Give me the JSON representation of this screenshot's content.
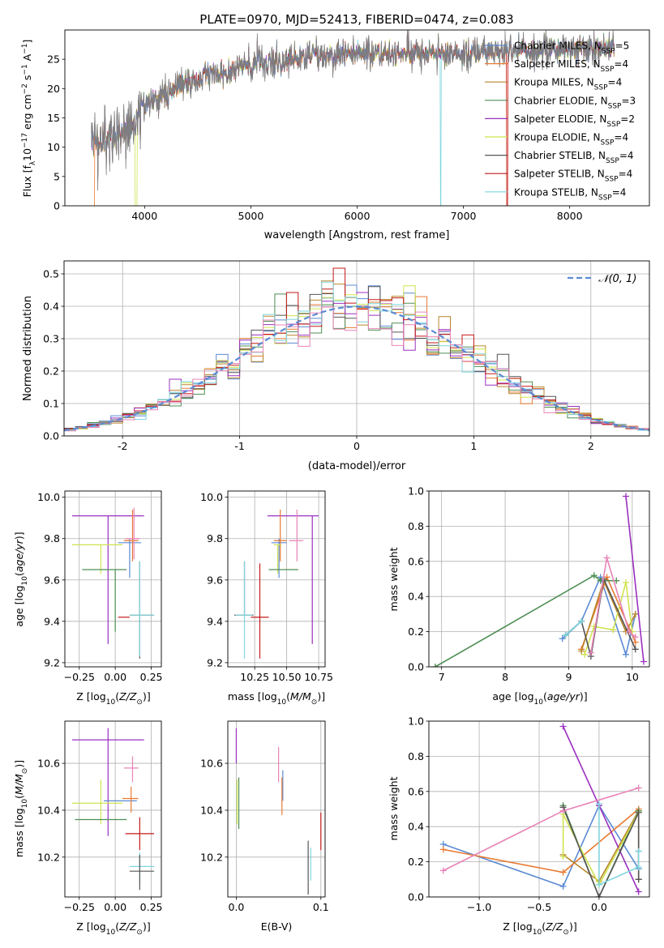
{
  "figure_title": "PLATE=0970, MJD=52413, FIBERID=0474, z=0.083",
  "colors": {
    "Chabrier MILES": "#5b8bd4",
    "Salpeter MILES": "#e87a32",
    "Kroupa MILES": "#b8862b",
    "Chabrier ELODIE": "#4f8f55",
    "Salpeter ELODIE": "#9b30c0",
    "Kroupa ELODIE": "#d0e34f",
    "Chabrier STELIB": "#555555",
    "Salpeter STELIB": "#c41a1a",
    "Kroupa STELIB": "#7fd6dd",
    "extra_pink": "#e884b8"
  },
  "chart_data": [
    {
      "id": "spectrum",
      "type": "line",
      "title": "",
      "xlabel": "wavelength [Angstrom, rest frame]",
      "ylabel": "Flux [f_λ10^{-17} erg cm^{-2} s^{-1} A^{-1}]",
      "xlim": [
        3250,
        8750
      ],
      "ylim": [
        0,
        30
      ],
      "xticks": [
        4000,
        5000,
        6000,
        7000,
        8000
      ],
      "yticks": [
        0,
        5,
        10,
        15,
        20,
        25
      ],
      "grid": false,
      "legend_position": "right",
      "legend": [
        {
          "name": "Chabrier MILES",
          "nssp": 5
        },
        {
          "name": "Salpeter MILES",
          "nssp": 4
        },
        {
          "name": "Kroupa MILES",
          "nssp": 4
        },
        {
          "name": "Chabrier ELODIE",
          "nssp": 3
        },
        {
          "name": "Salpeter ELODIE",
          "nssp": 2
        },
        {
          "name": "Kroupa ELODIE",
          "nssp": 4
        },
        {
          "name": "Chabrier STELIB",
          "nssp": 4
        },
        {
          "name": "Salpeter STELIB",
          "nssp": 4
        },
        {
          "name": "Kroupa STELIB",
          "nssp": 4
        }
      ],
      "continuum": [
        [
          3500,
          10
        ],
        [
          3700,
          12
        ],
        [
          3900,
          14
        ],
        [
          4000,
          17
        ],
        [
          4300,
          20
        ],
        [
          4600,
          22.5
        ],
        [
          5000,
          24
        ],
        [
          5500,
          25.5
        ],
        [
          6000,
          26
        ],
        [
          6500,
          26
        ],
        [
          7000,
          26
        ],
        [
          7500,
          26.5
        ],
        [
          8000,
          26.5
        ],
        [
          8400,
          27
        ]
      ]
    },
    {
      "id": "residuals",
      "type": "line",
      "title": "",
      "xlabel": "(data-model)/error",
      "ylabel": "Normed distribution",
      "xlim": [
        -2.5,
        2.5
      ],
      "ylim": [
        0,
        0.54
      ],
      "xticks": [
        -2,
        -1,
        0,
        1,
        2
      ],
      "yticks": [
        0.0,
        0.1,
        0.2,
        0.3,
        0.4,
        0.5
      ],
      "grid": true,
      "legend_position": "top-right",
      "legend": [
        {
          "name": "𝒩(0, 1)"
        }
      ],
      "bins_lower": -2.5,
      "bin_width": 0.1,
      "n_bins": 50
    },
    {
      "id": "age_vs_Z",
      "type": "scatter",
      "xlabel": "Z [log10(Z/Z⊙)]",
      "ylabel": "age  [log10(age/yr)]",
      "xlim": [
        -0.35,
        0.32
      ],
      "ylim": [
        9.18,
        10.03
      ],
      "xticks": [
        -0.25,
        0.0,
        0.25
      ],
      "xticklabels": [
        "−0.25",
        "0.00",
        "0.25"
      ],
      "yticks": [
        9.2,
        9.4,
        9.6,
        9.8,
        10.0
      ],
      "grid": true,
      "points": [
        {
          "name": "Salpeter ELODIE",
          "x": -0.05,
          "xerr": [
            0.25,
            0.25
          ],
          "y": 9.91,
          "yerr": [
            0.62,
            0.0
          ]
        },
        {
          "name": "Chabrier MILES",
          "x": 0.1,
          "xerr": [
            0.08,
            0.08
          ],
          "y": 9.78,
          "yerr": [
            0.17,
            0.02
          ]
        },
        {
          "name": "Salpeter MILES",
          "x": 0.12,
          "xerr": [
            0.06,
            0.04
          ],
          "y": 9.79,
          "yerr": [
            0.1,
            0.15
          ]
        },
        {
          "name": "extra_pink",
          "x": 0.13,
          "xerr": [
            0.06,
            0.04
          ],
          "y": 9.8,
          "yerr": [
            0.1,
            0.15
          ]
        },
        {
          "name": "Kroupa ELODIE",
          "x": -0.1,
          "xerr": [
            0.2,
            0.15
          ],
          "y": 9.77,
          "yerr": [
            0.14,
            0.0
          ]
        },
        {
          "name": "Chabrier ELODIE",
          "x": 0.0,
          "xerr": [
            0.23,
            0.08
          ],
          "y": 9.65,
          "yerr": [
            0.3,
            0.0
          ]
        },
        {
          "name": "Salpeter STELIB",
          "x": 0.1,
          "xerr": [
            0.08,
            0.0
          ],
          "y": 9.42,
          "yerr": [
            0.0,
            0.0
          ]
        },
        {
          "name": "Chabrier STELIB",
          "x": 0.17,
          "xerr": [
            0.07,
            0.1
          ],
          "y": 9.43,
          "yerr": [
            0.21,
            0.26
          ]
        },
        {
          "name": "Kroupa STELIB",
          "x": 0.17,
          "xerr": [
            0.07,
            0.1
          ],
          "y": 9.43,
          "yerr": [
            0.2,
            0.26
          ]
        }
      ]
    },
    {
      "id": "age_vs_mass",
      "type": "scatter",
      "xlabel": "mass [log10(M/M⊙)]",
      "ylabel": "",
      "xlim": [
        10.04,
        10.8
      ],
      "ylim": [
        9.18,
        10.03
      ],
      "xticks": [
        10.25,
        10.5,
        10.75
      ],
      "xticklabels": [
        "10.25",
        "10.50",
        "10.75"
      ],
      "yticks": [
        9.2,
        9.4,
        9.6,
        9.8,
        10.0
      ],
      "grid": true,
      "points": [
        {
          "name": "Salpeter ELODIE",
          "x": 10.7,
          "xerr": [
            0.35,
            0.05
          ],
          "y": 9.91,
          "yerr": [
            0.62,
            0.0
          ]
        },
        {
          "name": "Chabrier MILES",
          "x": 10.44,
          "xerr": [
            0.06,
            0.06
          ],
          "y": 9.78,
          "yerr": [
            0.17,
            0.02
          ]
        },
        {
          "name": "Salpeter MILES",
          "x": 10.45,
          "xerr": [
            0.05,
            0.05
          ],
          "y": 9.79,
          "yerr": [
            0.1,
            0.15
          ]
        },
        {
          "name": "extra_pink",
          "x": 10.58,
          "xerr": [
            0.06,
            0.05
          ],
          "y": 9.79,
          "yerr": [
            0.1,
            0.15
          ]
        },
        {
          "name": "Kroupa ELODIE",
          "x": 10.43,
          "xerr": [
            0.03,
            0.03
          ],
          "y": 9.77,
          "yerr": [
            0.14,
            0.0
          ]
        },
        {
          "name": "Chabrier ELODIE",
          "x": 10.5,
          "xerr": [
            0.14,
            0.09
          ],
          "y": 9.65,
          "yerr": [
            0.0,
            0.0
          ]
        },
        {
          "name": "Salpeter STELIB",
          "x": 10.29,
          "xerr": [
            0.07,
            0.07
          ],
          "y": 9.42,
          "yerr": [
            0.2,
            0.26
          ]
        },
        {
          "name": "Chabrier STELIB",
          "x": 10.17,
          "xerr": [
            0.08,
            0.07
          ],
          "y": 9.43,
          "yerr": [
            0.0,
            0.26
          ]
        },
        {
          "name": "Kroupa STELIB",
          "x": 10.17,
          "xerr": [
            0.07,
            0.06
          ],
          "y": 9.43,
          "yerr": [
            0.21,
            0.26
          ]
        }
      ]
    },
    {
      "id": "massweight_vs_age",
      "type": "line",
      "xlabel": "age  [log10(age/yr)]",
      "ylabel": "mass weight",
      "xlim": [
        6.8,
        10.27
      ],
      "ylim": [
        0,
        1.0
      ],
      "xticks": [
        7,
        8,
        9,
        10
      ],
      "yticks": [
        0.0,
        0.2,
        0.4,
        0.6,
        0.8,
        1.0
      ],
      "grid": true,
      "series": [
        {
          "name": "Chabrier MILES",
          "x": [
            8.9,
            9.2,
            9.5,
            9.9,
            10.05
          ],
          "y": [
            0.16,
            0.26,
            0.51,
            0.07,
            0.3
          ]
        },
        {
          "name": "Salpeter MILES",
          "x": [
            9.2,
            9.6,
            10.05
          ],
          "y": [
            0.1,
            0.51,
            0.14
          ]
        },
        {
          "name": "Kroupa MILES",
          "x": [
            9.2,
            9.55,
            9.9,
            10.05
          ],
          "y": [
            0.09,
            0.49,
            0.2,
            0.3
          ]
        },
        {
          "name": "Chabrier ELODIE",
          "x": [
            6.9,
            9.4,
            9.5,
            9.75
          ],
          "y": [
            0.0,
            0.52,
            0.49,
            0.49
          ]
        },
        {
          "name": "Salpeter ELODIE",
          "x": [
            9.9,
            10.18
          ],
          "y": [
            0.97,
            0.03
          ]
        },
        {
          "name": "Kroupa ELODIE",
          "x": [
            9.25,
            9.4,
            9.7,
            9.9,
            10.0
          ],
          "y": [
            0.07,
            0.23,
            0.21,
            0.48,
            0.2
          ]
        },
        {
          "name": "Chabrier STELIB",
          "x": [
            8.95,
            9.2,
            9.35,
            9.55,
            10.05
          ],
          "y": [
            0.18,
            0.26,
            0.06,
            0.5,
            0.1
          ]
        },
        {
          "name": "Kroupa STELIB",
          "x": [
            8.95,
            9.2
          ],
          "y": [
            0.18,
            0.26
          ]
        },
        {
          "name": "extra_pink",
          "x": [
            9.35,
            9.6,
            9.95,
            10.05
          ],
          "y": [
            0.08,
            0.62,
            0.2,
            0.17
          ]
        }
      ]
    },
    {
      "id": "mass_vs_Z",
      "type": "scatter",
      "xlabel": "Z [log10(Z/Z⊙)]",
      "ylabel": "mass [log10(M/M⊙)]",
      "xlim": [
        -0.35,
        0.32
      ],
      "ylim": [
        10.03,
        10.78
      ],
      "xticks": [
        -0.25,
        0.0,
        0.25
      ],
      "xticklabels": [
        "−0.25",
        "0.00",
        "0.25"
      ],
      "yticks": [
        10.2,
        10.4,
        10.6
      ],
      "grid": true,
      "points": [
        {
          "name": "Salpeter ELODIE",
          "x": -0.05,
          "xerr": [
            0.25,
            0.25
          ],
          "y": 10.7,
          "yerr": [
            0.41,
            0.05
          ]
        },
        {
          "name": "extra_pink",
          "x": 0.12,
          "xerr": [
            0.06,
            0.04
          ],
          "y": 10.58,
          "yerr": [
            0.06,
            0.05
          ]
        },
        {
          "name": "Chabrier MILES",
          "x": 0.05,
          "xerr": [
            0.13,
            0.1
          ],
          "y": 10.44,
          "yerr": [
            0.0,
            0.0
          ]
        },
        {
          "name": "Salpeter MILES",
          "x": 0.11,
          "xerr": [
            0.06,
            0.05
          ],
          "y": 10.45,
          "yerr": [
            0.06,
            0.05
          ]
        },
        {
          "name": "Kroupa ELODIE",
          "x": -0.1,
          "xerr": [
            0.2,
            0.15
          ],
          "y": 10.43,
          "yerr": [
            0.09,
            0.1
          ]
        },
        {
          "name": "Chabrier ELODIE",
          "x": -0.05,
          "xerr": [
            0.23,
            0.13
          ],
          "y": 10.36,
          "yerr": [
            0.0,
            0.0
          ]
        },
        {
          "name": "Salpeter STELIB",
          "x": 0.17,
          "xerr": [
            0.1,
            0.1
          ],
          "y": 10.3,
          "yerr": [
            0.07,
            0.07
          ]
        },
        {
          "name": "Kroupa STELIB",
          "x": 0.17,
          "xerr": [
            0.07,
            0.1
          ],
          "y": 10.16,
          "yerr": [
            0.07,
            0.06
          ]
        },
        {
          "name": "Chabrier STELIB",
          "x": 0.17,
          "xerr": [
            0.07,
            0.1
          ],
          "y": 10.14,
          "yerr": [
            0.08,
            0.07
          ]
        }
      ]
    },
    {
      "id": "mass_vs_ebv",
      "type": "scatter",
      "xlabel": "E(B-V)",
      "ylabel": "",
      "xlim": [
        -0.01,
        0.105
      ],
      "ylim": [
        10.03,
        10.78
      ],
      "xticks": [
        0.0,
        0.1
      ],
      "xticklabels": [
        "0.0",
        "0.1"
      ],
      "yticks": [
        10.2,
        10.4,
        10.6
      ],
      "grid": true,
      "points": [
        {
          "name": "Salpeter ELODIE",
          "x": 0.0,
          "xerr": [
            0,
            0
          ],
          "y": 10.7,
          "yerr": [
            0.1,
            0.05
          ]
        },
        {
          "name": "Kroupa ELODIE",
          "x": 0.001,
          "xerr": [
            0,
            0
          ],
          "y": 10.43,
          "yerr": [
            0.09,
            0.1
          ]
        },
        {
          "name": "Chabrier ELODIE",
          "x": 0.003,
          "xerr": [
            0,
            0
          ],
          "y": 10.36,
          "yerr": [
            0.04,
            0.18
          ]
        },
        {
          "name": "extra_pink",
          "x": 0.05,
          "xerr": [
            0,
            0
          ],
          "y": 10.6,
          "yerr": [
            0.08,
            0.07
          ]
        },
        {
          "name": "Chabrier MILES",
          "x": 0.055,
          "xerr": [
            0,
            0
          ],
          "y": 10.5,
          "yerr": [
            0.06,
            0.07
          ]
        },
        {
          "name": "Salpeter MILES",
          "x": 0.054,
          "xerr": [
            0,
            0
          ],
          "y": 10.46,
          "yerr": [
            0.08,
            0.08
          ]
        },
        {
          "name": "Chabrier STELIB",
          "x": 0.085,
          "xerr": [
            0,
            0
          ],
          "y": 10.16,
          "yerr": [
            0.12,
            0.11
          ]
        },
        {
          "name": "Kroupa STELIB",
          "x": 0.088,
          "xerr": [
            0,
            0
          ],
          "y": 10.17,
          "yerr": [
            0.07,
            0.07
          ]
        },
        {
          "name": "Salpeter STELIB",
          "x": 0.1,
          "xerr": [
            0,
            0
          ],
          "y": 10.3,
          "yerr": [
            0.07,
            0.09
          ]
        }
      ]
    },
    {
      "id": "massweight_vs_Z",
      "type": "line",
      "xlabel": "Z [log10(Z/Z⊙)]",
      "ylabel": "mass weight",
      "xlim": [
        -1.42,
        0.42
      ],
      "ylim": [
        0,
        1.0
      ],
      "xticks": [
        -1.0,
        -0.5,
        0.0
      ],
      "xticklabels": [
        "−1.0",
        "−0.5",
        "0.0"
      ],
      "yticks": [
        0.0,
        0.2,
        0.4,
        0.6,
        0.8,
        1.0
      ],
      "grid": true,
      "series": [
        {
          "name": "Chabrier MILES",
          "x": [
            -1.3,
            -0.3,
            0.0,
            0.33,
            0.33
          ],
          "y": [
            0.3,
            0.06,
            0.52,
            0.16,
            0.26
          ]
        },
        {
          "name": "Salpeter MILES",
          "x": [
            -1.3,
            -0.3,
            0.33,
            0.33
          ],
          "y": [
            0.27,
            0.14,
            0.5,
            0.1
          ]
        },
        {
          "name": "Kroupa MILES",
          "x": [
            -0.3,
            0.0,
            0.33
          ],
          "y": [
            0.24,
            0.09,
            0.49
          ]
        },
        {
          "name": "Chabrier ELODIE",
          "x": [
            -0.3,
            0.0,
            0.33
          ],
          "y": [
            0.52,
            0.0,
            0.49
          ]
        },
        {
          "name": "Salpeter ELODIE",
          "x": [
            -0.3,
            0.0,
            0.33
          ],
          "y": [
            0.97,
            0.52,
            0.03
          ]
        },
        {
          "name": "Kroupa ELODIE",
          "x": [
            -0.3,
            -0.3,
            0.0,
            0.33
          ],
          "y": [
            0.23,
            0.47,
            0.07,
            0.48
          ]
        },
        {
          "name": "Chabrier STELIB",
          "x": [
            -0.3,
            0.0,
            0.33,
            0.33
          ],
          "y": [
            0.51,
            0.0,
            0.48,
            0.1
          ]
        },
        {
          "name": "Kroupa STELIB",
          "x": [
            0.0,
            0.0,
            0.33,
            0.33
          ],
          "y": [
            0.53,
            0.07,
            0.17,
            0.26
          ]
        },
        {
          "name": "extra_pink",
          "x": [
            -1.3,
            -0.3,
            0.33
          ],
          "y": [
            0.15,
            0.49,
            0.62
          ]
        }
      ]
    }
  ]
}
